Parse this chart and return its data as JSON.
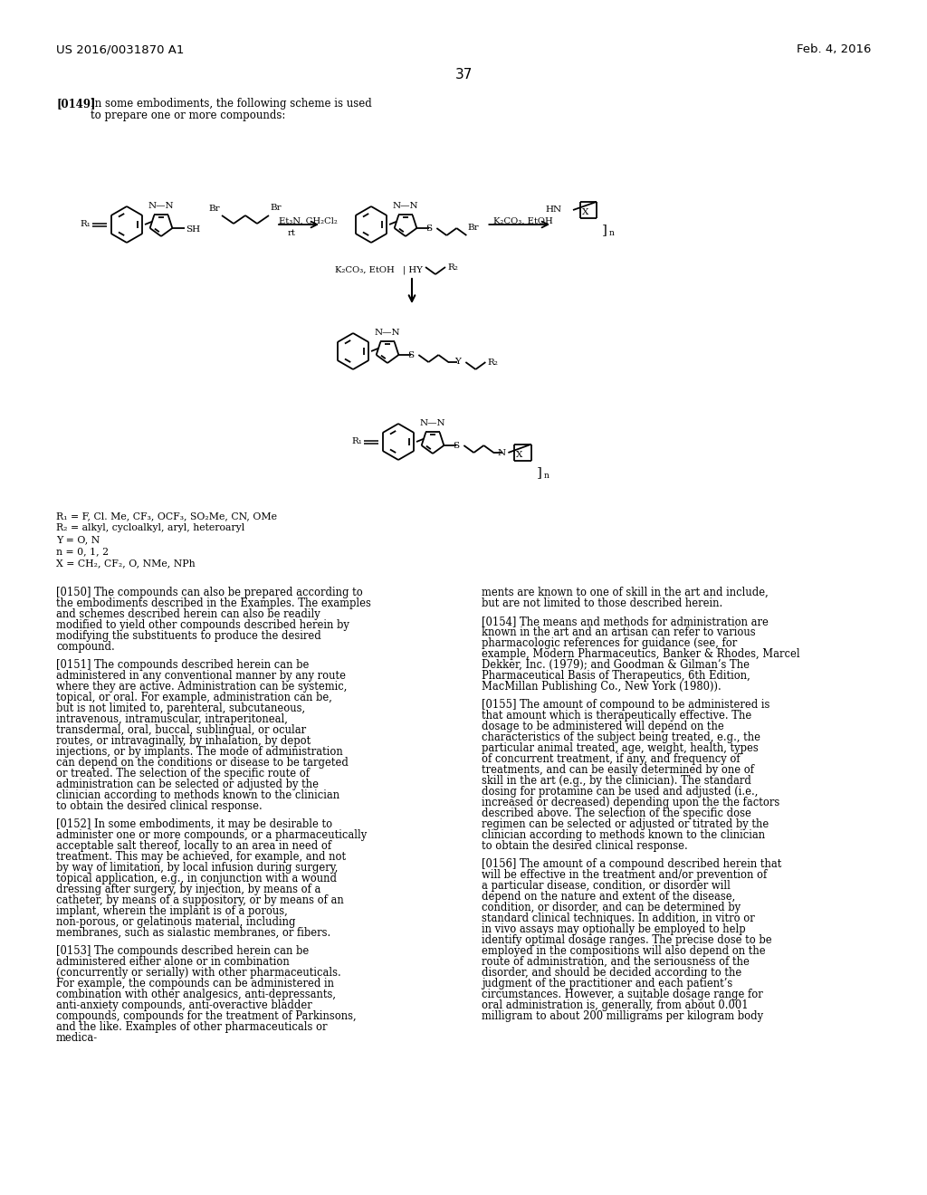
{
  "page_header_left": "US 2016/0031870 A1",
  "page_header_right": "Feb. 4, 2016",
  "page_number": "37",
  "bg_color": "#ffffff",
  "legend_lines": [
    "R₁ = F, Cl. Me, CF₃, OCF₃, SO₂Me, CN, OMe",
    "R₂ = alkyl, cycloalkyl, aryl, heteroaryl",
    "Y = O, N",
    "n = 0, 1, 2",
    "X = CH₂, CF₂, O, NMe, NPh"
  ],
  "para_0149": "[0149]   In some embodiments, the following scheme is used\nto prepare one or more compounds:",
  "para_0150": "[0150]   The compounds can also be prepared according to the embodiments described in the Examples. The examples and schemes described herein can also be readily modified to yield other compounds described herein by modifying the substituents to produce the desired compound.",
  "para_0151": "[0151]   The compounds described herein can be administered in any conventional manner by any route where they are active. Administration can be systemic, topical, or oral. For example, administration can be, but is not limited to, parenteral, subcutaneous, intravenous, intramuscular, intraperitoneal, transdermal, oral, buccal, sublingual, or ocular routes, or intravaginally, by inhalation, by depot injections, or by implants. The mode of administration can depend on the conditions or disease to be targeted or treated. The selection of the specific route of administration can be selected or adjusted by the clinician according to methods known to the clinician to obtain the desired clinical response.",
  "para_0152": "[0152]   In some embodiments, it may be desirable to administer one or more compounds, or a pharmaceutically acceptable salt thereof, locally to an area in need of treatment. This may be achieved, for example, and not by way of limitation, by local infusion during surgery, topical application, e.g., in conjunction with a wound dressing after surgery, by injection, by means of a catheter, by means of a suppository, or by means of an implant, wherein the implant is of a porous, non-porous, or gelatinous material, including membranes, such as sialastic membranes, or fibers.",
  "para_0153": "[0153]   The compounds described herein can be administered either alone or in combination (concurrently or serially) with other pharmaceuticals. For example, the compounds can be administered in combination with other analgesics, anti-depressants, anti-anxiety compounds, anti-overactive bladder compounds, compounds for the treatment of Parkinsons, and the like. Examples of other pharmaceuticals or medica-",
  "para_0154a": "ments are known to one of skill in the art and include, but are not limited to those described herein.",
  "para_0154b": "[0154]   The means and methods for administration are known in the art and an artisan can refer to various pharmacologic references for guidance (see, for example, Modern Pharmaceutics, Banker & Rhodes, Marcel Dekker, Inc. (1979); and Goodman & Gilman’s The Pharmaceutical Basis of Therapeutics, 6th Edition, MacMillan Publishing Co., New York (1980)).",
  "para_0155": "[0155]   The amount of compound to be administered is that amount which is therapeutically effective. The dosage to be administered will depend on the characteristics of the subject being treated, e.g., the particular animal treated, age, weight, health, types of concurrent treatment, if any, and frequency of treatments, and can be easily determined by one of skill in the art (e.g., by the clinician). The standard dosing for protamine can be used and adjusted (i.e., increased or decreased) depending upon the the factors described above. The selection of the specific dose regimen can be selected or adjusted or titrated by the clinician according to methods known to the clinician to obtain the desired clinical response.",
  "para_0156": "[0156]   The amount of a compound described herein that will be effective in the treatment and/or prevention of a particular disease, condition, or disorder will depend on the nature and extent of the disease, condition, or disorder, and can be determined by standard clinical techniques. In addition, in vitro or in vivo assays may optionally be employed to help identify optimal dosage ranges. The precise dose to be employed in the compositions will also depend on the route of administration, and the seriousness of the disorder, and should be decided according to the judgment of the practitioner and each patient’s circumstances. However, a suitable dosage range for oral administration is, generally, from about 0.001 milligram to about 200 milligrams per kilogram body"
}
